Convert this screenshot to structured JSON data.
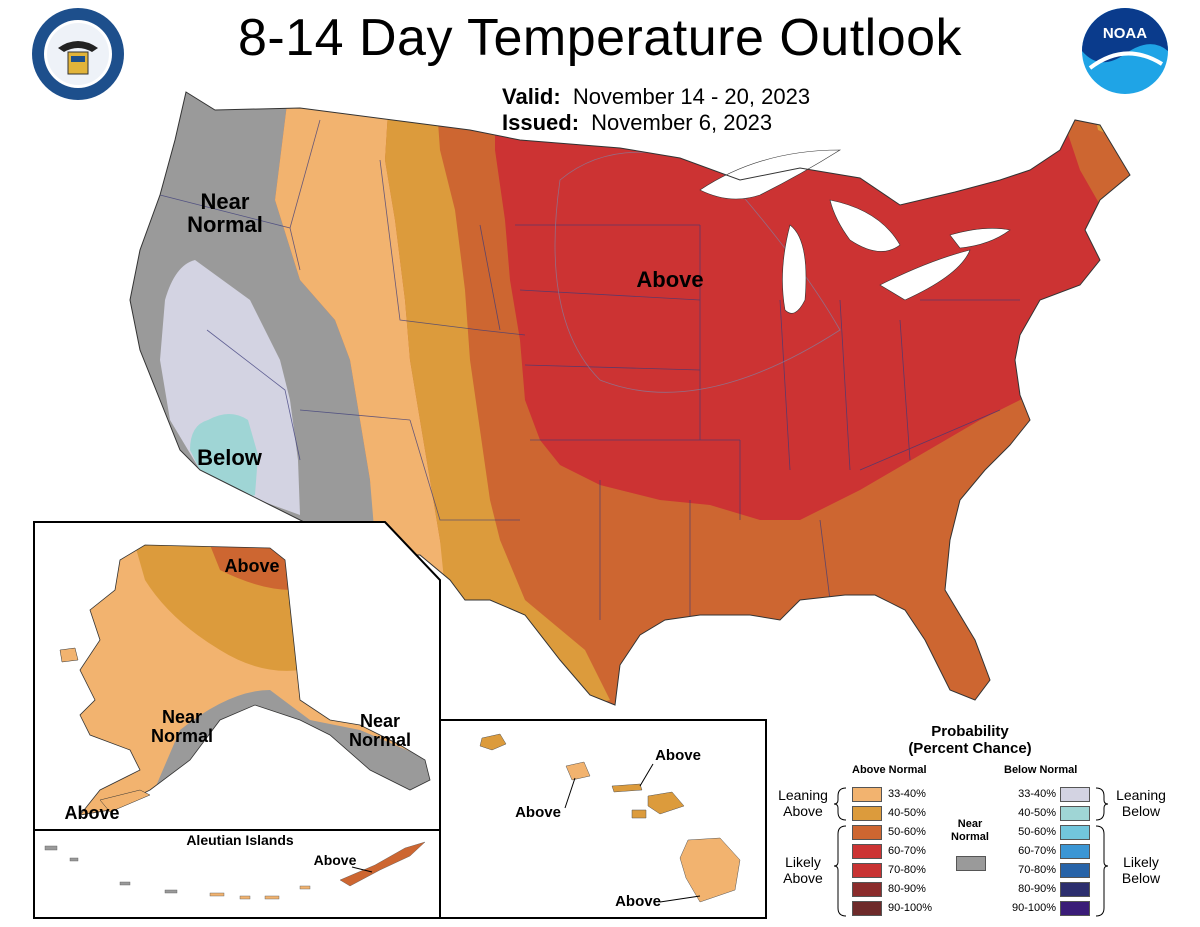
{
  "header": {
    "title": "8-14 Day Temperature Outlook",
    "valid_label": "Valid:",
    "valid_value": "November 14 - 20, 2023",
    "issued_label": "Issued:",
    "issued_value": "November 6, 2023",
    "left_logo": "department-of-commerce-seal",
    "right_logo": "noaa-logo",
    "noaa_text": "NOAA"
  },
  "map": {
    "labels": {
      "conus_near_normal": [
        "Near",
        "Normal"
      ],
      "conus_above": "Above",
      "conus_below": "Below",
      "alaska_above_north": "Above",
      "alaska_near_normal_sw": [
        "Near",
        "Normal"
      ],
      "alaska_near_normal_se": [
        "Near",
        "Normal"
      ],
      "alaska_above_sw": "Above",
      "aleutian_title": "Aleutian Islands",
      "aleutian_above": "Above",
      "hawaii_above_1": "Above",
      "hawaii_above_2": "Above",
      "hawaii_above_3": "Above"
    }
  },
  "legend": {
    "title_line1": "Probability",
    "title_line2": "(Percent Chance)",
    "above_header": "Above Normal",
    "below_header": "Below Normal",
    "near_normal_label": [
      "Near",
      "Normal"
    ],
    "near_normal_color": "#9a9a9a",
    "leaning_above": [
      "Leaning",
      "Above"
    ],
    "likely_above": [
      "Likely",
      "Above"
    ],
    "leaning_below": [
      "Leaning",
      "Below"
    ],
    "likely_below": [
      "Likely",
      "Below"
    ],
    "above": [
      {
        "range": "33-40%",
        "color": "#f2b36f"
      },
      {
        "range": "40-50%",
        "color": "#dc9b3c"
      },
      {
        "range": "50-60%",
        "color": "#cd6631"
      },
      {
        "range": "60-70%",
        "color": "#cc3333"
      },
      {
        "range": "70-80%",
        "color": "#c83232"
      },
      {
        "range": "80-90%",
        "color": "#8b2c2c"
      },
      {
        "range": "90-100%",
        "color": "#6e2a2a"
      }
    ],
    "below": [
      {
        "range": "33-40%",
        "color": "#d3d3e2"
      },
      {
        "range": "40-50%",
        "color": "#9fd5d5"
      },
      {
        "range": "50-60%",
        "color": "#72c6dc"
      },
      {
        "range": "60-70%",
        "color": "#3b96d4"
      },
      {
        "range": "70-80%",
        "color": "#2763a8"
      },
      {
        "range": "80-90%",
        "color": "#2c2e6e"
      },
      {
        "range": "90-100%",
        "color": "#3a1c78"
      }
    ]
  }
}
